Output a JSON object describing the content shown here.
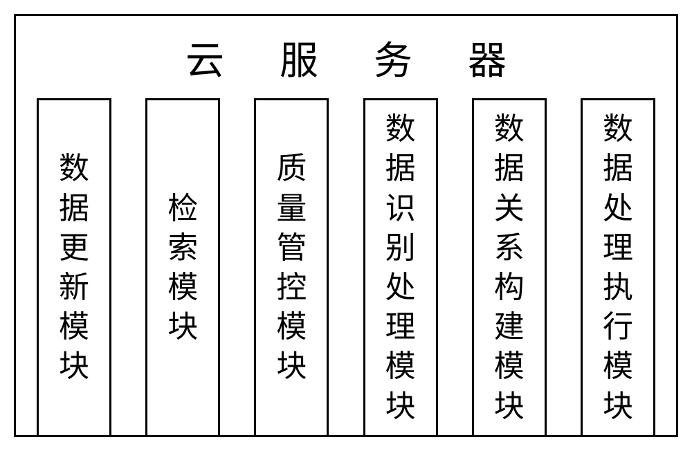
{
  "diagram": {
    "type": "infographic",
    "title": "云服务器",
    "background_color": "#ffffff",
    "border_color": "#000000",
    "border_width": 3,
    "text_color": "#000000",
    "title_fontsize": 56,
    "title_letter_spacing": 80,
    "font_family": "KaiTi",
    "module_fontsize": 44,
    "module_width": 108,
    "module_height": 490,
    "module_border_width": 3,
    "modules": [
      {
        "label": "数据更新模块"
      },
      {
        "label": "检索模块"
      },
      {
        "label": "质量管控模块"
      },
      {
        "label": "数据识别处理模块"
      },
      {
        "label": "数据关系构建模块"
      },
      {
        "label": "数据处理执行模块"
      }
    ]
  }
}
